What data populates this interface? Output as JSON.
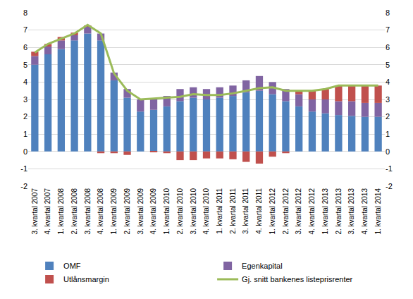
{
  "chart_data": {
    "type": "bar",
    "stacked": true,
    "grid": true,
    "legend": "bottom",
    "categories": [
      "3. kvartal 2007",
      "4. kvartal 2007",
      "1. kvartal 2008",
      "2. kvartal 2008",
      "3. kvartal 2008",
      "4. kvartal 2008",
      "1. kvartal 2009",
      "2. kvartal 2009",
      "3. kvartal 2009",
      "4. kvartal 2009",
      "1. kvartal 2010",
      "2. kvartal 2010",
      "3. kvartal 2010",
      "4. kvartal 2010",
      "1. kvartal 2011",
      "2. kvartal 2011",
      "3. kvartal 2011",
      "4. kvartal 2011",
      "1. kvartal 2012",
      "2. kvartal 2012",
      "3. kvartal 2012",
      "4. kvartal 2012",
      "1. kvartal 2013",
      "2. kvartal 2013",
      "3. kvartal 2013",
      "4. kvartal 2013",
      "1. kvartal 2014"
    ],
    "series": [
      {
        "name": "OMF",
        "color": "#4f81bd",
        "type": "bar",
        "values": [
          5.0,
          5.6,
          5.9,
          6.4,
          6.8,
          6.4,
          4.1,
          3.1,
          2.3,
          2.4,
          2.6,
          2.9,
          3.1,
          3.0,
          3.1,
          3.2,
          3.4,
          3.5,
          3.3,
          2.9,
          2.6,
          2.3,
          2.2,
          2.1,
          2.05,
          2.0,
          2.0
        ]
      },
      {
        "name": "Egenkapital",
        "color": "#8064a2",
        "type": "bar",
        "values": [
          0.5,
          0.45,
          0.5,
          0.3,
          0.4,
          0.4,
          0.45,
          0.5,
          0.7,
          0.65,
          0.6,
          0.7,
          0.6,
          0.6,
          0.6,
          0.6,
          0.7,
          0.85,
          0.7,
          0.7,
          0.7,
          0.7,
          0.8,
          0.8,
          0.85,
          0.8,
          0.8
        ]
      },
      {
        "name": "Utlånsmargin",
        "color": "#c0504d",
        "type": "bar",
        "values": [
          0.25,
          0.15,
          0.2,
          0.15,
          0.05,
          -0.1,
          -0.1,
          -0.2,
          0,
          -0.05,
          -0.1,
          -0.5,
          -0.5,
          -0.4,
          -0.4,
          -0.45,
          -0.6,
          -0.7,
          -0.3,
          -0.1,
          0.2,
          0.5,
          0.6,
          0.9,
          0.9,
          1.0,
          1.0
        ]
      },
      {
        "name": "Gj. snitt bankenes listeprisrenter",
        "color": "#9bbb59",
        "type": "line",
        "axis": "y2",
        "values": [
          5.7,
          6.2,
          6.5,
          6.8,
          7.3,
          6.8,
          4.5,
          3.5,
          3.0,
          3.05,
          3.1,
          3.15,
          3.3,
          3.25,
          3.25,
          3.35,
          3.5,
          3.65,
          3.7,
          3.5,
          3.5,
          3.5,
          3.6,
          3.8,
          3.8,
          3.8,
          3.8
        ]
      }
    ],
    "ylim": [
      -2,
      8
    ],
    "yticks": [
      -2,
      -1,
      0,
      1,
      2,
      3,
      4,
      5,
      6,
      7,
      8
    ],
    "y2lim": [
      -2,
      8
    ],
    "y2ticks": [
      -2,
      -1,
      0,
      1,
      2,
      3,
      4,
      5,
      6,
      7,
      8
    ]
  }
}
